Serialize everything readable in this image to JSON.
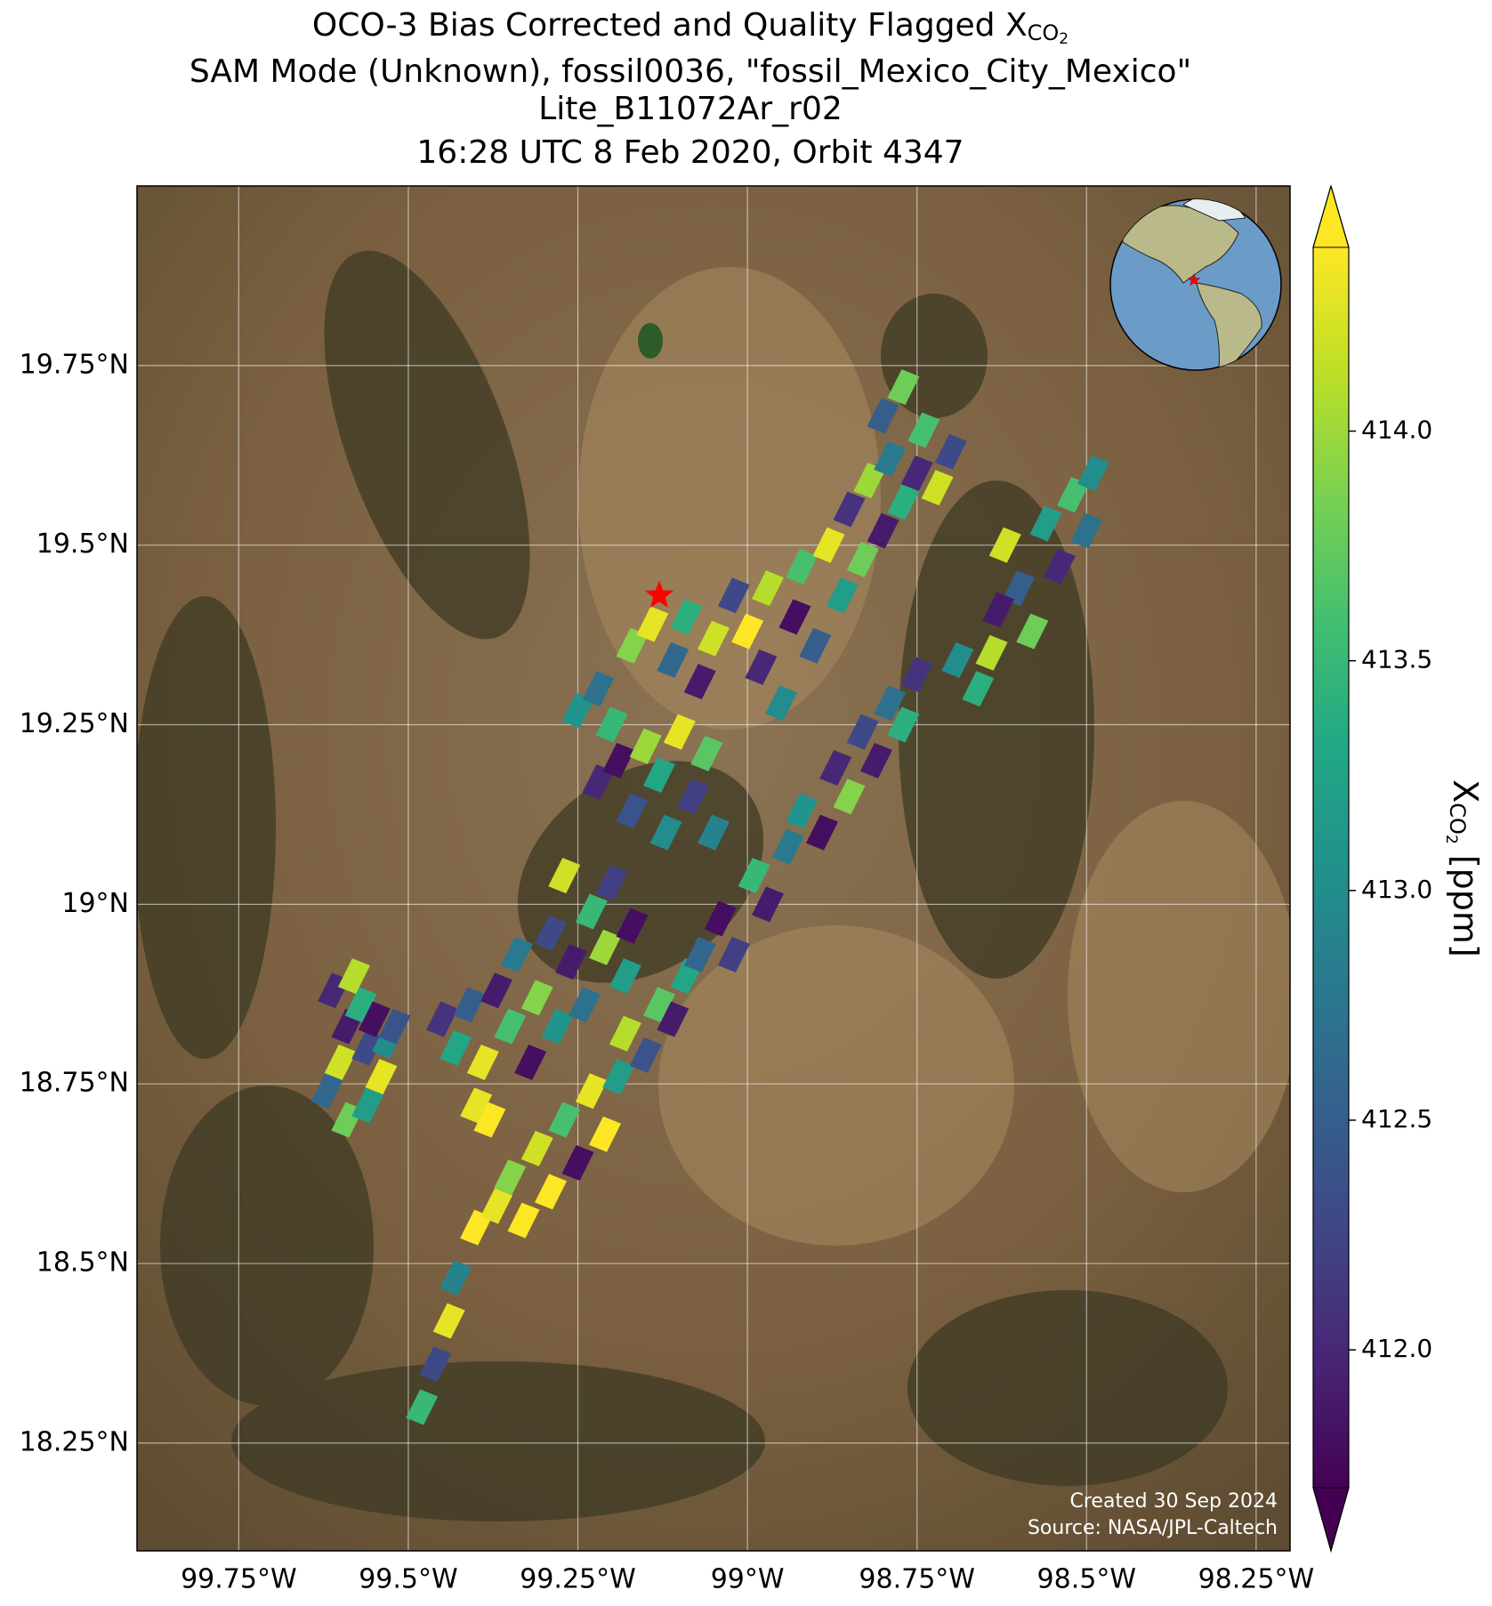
{
  "chart_data": {
    "type": "map",
    "title": [
      {
        "text": "OCO-3 Bias Corrected and Quality Flagged X",
        "sub": "CO",
        "subsub": "2"
      },
      {
        "text": "SAM Mode (Unknown), fossil0036, \"fossil_Mexico_City_Mexico\""
      },
      {
        "text": "Lite_B11072Ar_r02"
      },
      {
        "text": "16:28 UTC 8 Feb 2020, Orbit 4347"
      }
    ],
    "colormap": "viridis",
    "grid": true,
    "xlim": [
      -99.9,
      -98.2
    ],
    "ylim": [
      18.1,
      20.0
    ],
    "xticks": [
      {
        "value": -99.75,
        "label": "99.75°W"
      },
      {
        "value": -99.5,
        "label": "99.5°W"
      },
      {
        "value": -99.25,
        "label": "99.25°W"
      },
      {
        "value": -99,
        "label": "99°W"
      },
      {
        "value": -98.75,
        "label": "98.75°W"
      },
      {
        "value": -98.5,
        "label": "98.5°W"
      },
      {
        "value": -98.25,
        "label": "98.25°W"
      }
    ],
    "yticks": [
      {
        "value": 18.25,
        "label": "18.25°N"
      },
      {
        "value": 18.5,
        "label": "18.5°N"
      },
      {
        "value": 18.75,
        "label": "18.75°N"
      },
      {
        "value": 19,
        "label": "19°N"
      },
      {
        "value": 19.25,
        "label": "19.25°N"
      },
      {
        "value": 19.5,
        "label": "19.5°N"
      },
      {
        "value": 19.75,
        "label": "19.75°N"
      }
    ],
    "colorbar": {
      "label": "X",
      "label_sub": "CO",
      "label_subsub": "2",
      "label_unit": " [ppm]",
      "lim": [
        411.7,
        414.4
      ],
      "ticks": [
        {
          "value": 412,
          "label": "412.0"
        },
        412.5,
        {
          "value": 413,
          "label": "413.0"
        },
        413.5,
        {
          "value": 414,
          "label": "414.0"
        }
      ]
    },
    "target": {
      "x": -99.13,
      "y": 19.43
    },
    "credits": [
      "Created 30 Sep 2024",
      "Source: NASA/JPL-Caltech"
    ],
    "x": [
      -99.62,
      -99.6,
      -99.59,
      -99.57,
      -99.56,
      -99.54,
      -99.61,
      -99.58,
      -99.55,
      -99.53,
      -99.52,
      -99.59,
      -99.56,
      -99.45,
      -99.43,
      -99.41,
      -99.39,
      -99.4,
      -99.38,
      -99.37,
      -99.35,
      -99.34,
      -99.32,
      -99.31,
      -99.29,
      -99.28,
      -99.27,
      -99.26,
      -99.24,
      -99.23,
      -99.21,
      -99.2,
      -99.18,
      -99.17,
      -99.25,
      -99.22,
      -99.2,
      -99.22,
      -99.19,
      -99.17,
      -99.15,
      -99.13,
      -99.12,
      -99.1,
      -99.08,
      -99.06,
      -99.05,
      -99.17,
      -99.14,
      -99.11,
      -99.09,
      -99.07,
      -99.05,
      -99.02,
      -99.0,
      -98.98,
      -98.97,
      -98.95,
      -98.93,
      -98.92,
      -98.9,
      -98.88,
      -98.86,
      -98.85,
      -98.83,
      -98.82,
      -98.8,
      -98.79,
      -98.77,
      -98.75,
      -98.74,
      -98.72,
      -98.7,
      -98.8,
      -98.77,
      -99.48,
      -99.46,
      -99.44,
      -99.43,
      -99.4,
      -99.37,
      -99.35,
      -99.33,
      -99.31,
      -99.29,
      -99.27,
      -99.25,
      -99.23,
      -99.21,
      -99.19,
      -99.18,
      -99.15,
      -99.13,
      -99.11,
      -99.09,
      -99.07,
      -99.04,
      -99.02,
      -98.99,
      -98.97,
      -98.94,
      -98.92,
      -98.89,
      -98.87,
      -98.85,
      -98.83,
      -98.81,
      -98.79,
      -98.77,
      -98.75,
      -98.62,
      -98.6,
      -98.58,
      -98.56,
      -98.54,
      -98.52,
      -98.5,
      -98.49,
      -98.64,
      -98.66,
      -98.69,
      -98.63
    ],
    "y": [
      18.74,
      18.78,
      18.83,
      18.86,
      18.8,
      18.76,
      18.88,
      18.9,
      18.84,
      18.81,
      18.83,
      18.7,
      18.72,
      18.84,
      18.8,
      18.86,
      18.78,
      18.72,
      18.7,
      18.88,
      18.83,
      18.93,
      18.78,
      18.87,
      18.96,
      18.83,
      19.04,
      18.92,
      18.86,
      18.99,
      18.94,
      19.03,
      18.9,
      18.97,
      19.27,
      19.3,
      19.25,
      19.17,
      19.2,
      19.13,
      19.22,
      19.18,
      19.1,
      19.24,
      19.15,
      19.21,
      19.1,
      19.36,
      19.39,
      19.34,
      19.4,
      19.31,
      19.37,
      19.43,
      19.38,
      19.33,
      19.44,
      19.28,
      19.4,
      19.47,
      19.36,
      19.5,
      19.43,
      19.55,
      19.48,
      19.59,
      19.52,
      19.62,
      19.56,
      19.6,
      19.66,
      19.58,
      19.63,
      19.68,
      19.72,
      18.3,
      18.36,
      18.42,
      18.48,
      18.55,
      18.58,
      18.62,
      18.56,
      18.66,
      18.6,
      18.7,
      18.64,
      18.74,
      18.68,
      18.76,
      18.82,
      18.79,
      18.86,
      18.84,
      18.9,
      18.93,
      18.98,
      18.93,
      19.04,
      19.0,
      19.08,
      19.13,
      19.1,
      19.19,
      19.15,
      19.24,
      19.2,
      19.28,
      19.25,
      19.32,
      19.5,
      19.44,
      19.38,
      19.53,
      19.47,
      19.57,
      19.52,
      19.6,
      19.35,
      19.3,
      19.34,
      19.41
    ],
    "values": [
      412.6,
      414.2,
      411.9,
      413.4,
      412.3,
      414.3,
      412.0,
      414.1,
      411.8,
      413.0,
      412.4,
      413.8,
      413.2,
      412.1,
      413.3,
      412.5,
      414.3,
      414.3,
      414.4,
      411.9,
      413.6,
      412.8,
      411.8,
      413.9,
      412.3,
      413.1,
      414.2,
      411.9,
      412.7,
      413.5,
      414.0,
      412.2,
      413.2,
      411.8,
      413.1,
      412.7,
      413.5,
      412.0,
      411.8,
      412.4,
      414.0,
      413.3,
      413.0,
      414.3,
      412.2,
      413.7,
      412.9,
      413.9,
      414.3,
      412.6,
      413.4,
      411.9,
      414.2,
      412.3,
      414.4,
      412.0,
      414.1,
      413.0,
      411.8,
      413.6,
      412.5,
      414.3,
      413.2,
      412.1,
      413.8,
      414.0,
      411.9,
      412.8,
      413.4,
      412.0,
      413.6,
      414.2,
      412.3,
      412.5,
      413.8,
      413.5,
      412.3,
      414.3,
      412.9,
      414.4,
      414.3,
      413.9,
      414.4,
      414.2,
      414.4,
      413.6,
      411.8,
      414.3,
      414.4,
      413.2,
      414.1,
      412.4,
      413.7,
      411.9,
      413.3,
      412.6,
      411.8,
      412.2,
      413.5,
      411.9,
      412.8,
      413.1,
      411.8,
      412.0,
      413.9,
      412.3,
      411.9,
      412.7,
      413.4,
      412.1,
      414.2,
      412.5,
      413.8,
      413.2,
      412.0,
      413.6,
      412.7,
      413.0,
      414.1,
      413.4,
      413.0,
      411.9
    ]
  }
}
